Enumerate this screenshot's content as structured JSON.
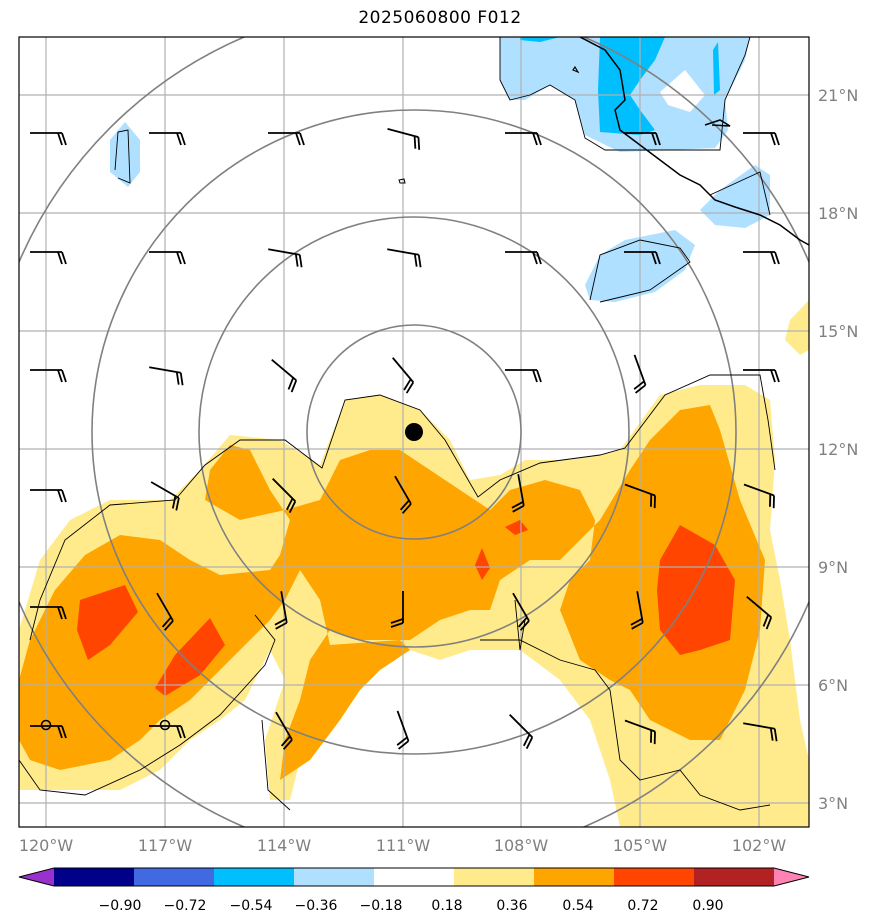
{
  "title": "2025060800 F012",
  "lat_labels": [
    "21°N",
    "18°N",
    "15°N",
    "12°N",
    "9°N",
    "6°N",
    "3°N"
  ],
  "lon_labels": [
    "120°W",
    "117°W",
    "114°W",
    "111°W",
    "108°W",
    "105°W",
    "102°W"
  ],
  "colorbar": {
    "ticks": [
      "−0.90",
      "−0.72",
      "−0.54",
      "−0.36",
      "−0.18",
      "0.18",
      "0.36",
      "0.54",
      "0.72",
      "0.90"
    ],
    "colors": [
      "#9932cc",
      "#00008b",
      "#4169e1",
      "#00bfff",
      "#b0e0ff",
      "#ffffff",
      "#ffeb8c",
      "#ffa500",
      "#ff4500",
      "#b22222",
      "#ff82b4"
    ]
  },
  "colors": {
    "light_yellow": "#ffeb8c",
    "orange": "#ffa500",
    "red_orange": "#ff4500",
    "light_blue": "#b0e0ff",
    "deep_sky_blue": "#00bfff",
    "grid": "#b0b0b0",
    "range_rings": "#808080"
  },
  "icons": {
    "storm_center": "storm-center-dot-icon",
    "wind_barb": "wind-barb-icon"
  }
}
